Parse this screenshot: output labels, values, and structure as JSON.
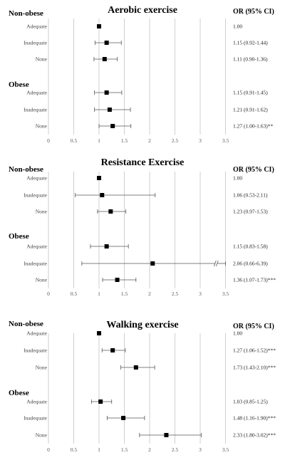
{
  "chart_data": [
    {
      "type": "forest",
      "title": "Aerobic exercise",
      "or_header": "OR (95% CI)",
      "xlim": [
        0,
        3.5
      ],
      "x_ticks": [
        "0",
        "0.5",
        "1",
        "1.5",
        "2",
        "2.5",
        "3",
        "3.5"
      ],
      "grid": "vertical",
      "groups": [
        {
          "label": "Non-obese",
          "rows": [
            {
              "label": "Adequate",
              "or": 1.0,
              "lo": 1.0,
              "hi": 1.0,
              "text": "1.00"
            },
            {
              "label": "Inadequate",
              "or": 1.15,
              "lo": 0.92,
              "hi": 1.44,
              "text": "1.15 (0.92-1.44)"
            },
            {
              "label": "None",
              "or": 1.11,
              "lo": 0.9,
              "hi": 1.36,
              "text": "1.11 (0.90-1.36)"
            }
          ]
        },
        {
          "label": "Obese",
          "rows": [
            {
              "label": "Adequate",
              "or": 1.15,
              "lo": 0.91,
              "hi": 1.45,
              "text": "1.15 (0.91-1.45)"
            },
            {
              "label": "Inadequate",
              "or": 1.21,
              "lo": 0.91,
              "hi": 1.62,
              "text": "1.21 (0.91-1.62)"
            },
            {
              "label": "None",
              "or": 1.27,
              "lo": 1.0,
              "hi": 1.63,
              "text": "1.27 (1.00-1.63)**"
            }
          ]
        }
      ]
    },
    {
      "type": "forest",
      "title": "Resistance Exercise",
      "or_header": "OR (95% CI)",
      "xlim": [
        0,
        3.5
      ],
      "x_ticks": [
        "0",
        "0.5",
        "1",
        "1.5",
        "2",
        "2.5",
        "3",
        "3.5"
      ],
      "grid": "vertical",
      "groups": [
        {
          "label": "Non-obese",
          "rows": [
            {
              "label": "Adequate",
              "or": 1.0,
              "lo": 1.0,
              "hi": 1.0,
              "text": "1.00"
            },
            {
              "label": "Inadequate",
              "or": 1.06,
              "lo": 0.53,
              "hi": 2.11,
              "text": "1.06 (0.53-2.11)"
            },
            {
              "label": "None",
              "or": 1.23,
              "lo": 0.97,
              "hi": 1.53,
              "text": "1.23 (0.97-1.53)"
            }
          ]
        },
        {
          "label": "Obese",
          "rows": [
            {
              "label": "Adequate",
              "or": 1.15,
              "lo": 0.83,
              "hi": 1.58,
              "text": "1.15 (0.83-1.58)"
            },
            {
              "label": "Inadequate",
              "or": 2.06,
              "lo": 0.66,
              "hi": 6.39,
              "text": "2.06 (0.66-6.39)",
              "axis_break": true
            },
            {
              "label": "None",
              "or": 1.36,
              "lo": 1.07,
              "hi": 1.73,
              "text": "1.36 (1.07-1.73)***"
            }
          ]
        }
      ]
    },
    {
      "type": "forest",
      "title": "Walking exercise",
      "or_header": "OR (95% CI)",
      "xlim": [
        0,
        3.5
      ],
      "x_ticks": [
        "0",
        "0.5",
        "1",
        "1.5",
        "2",
        "2.5",
        "3",
        "3.5"
      ],
      "grid": "vertical",
      "groups": [
        {
          "label": "Non-obese",
          "rows": [
            {
              "label": "Adequate",
              "or": 1.0,
              "lo": 1.0,
              "hi": 1.0,
              "text": "1.00"
            },
            {
              "label": "Inadequate",
              "or": 1.27,
              "lo": 1.06,
              "hi": 1.52,
              "text": "1.27 (1.06-1.52)***"
            },
            {
              "label": "None",
              "or": 1.73,
              "lo": 1.43,
              "hi": 2.1,
              "text": "1.73 (1.43-2.10)***"
            }
          ]
        },
        {
          "label": "Obese",
          "rows": [
            {
              "label": "Adequate",
              "or": 1.03,
              "lo": 0.85,
              "hi": 1.25,
              "text": "1.03 (0.85-1.25)"
            },
            {
              "label": "Inadequate",
              "or": 1.48,
              "lo": 1.16,
              "hi": 1.9,
              "text": "1.48 (1.16-1.90)***"
            },
            {
              "label": "None",
              "or": 2.33,
              "lo": 1.8,
              "hi": 3.02,
              "text": "2.33 (1.80-3.02)***"
            }
          ]
        }
      ]
    }
  ]
}
